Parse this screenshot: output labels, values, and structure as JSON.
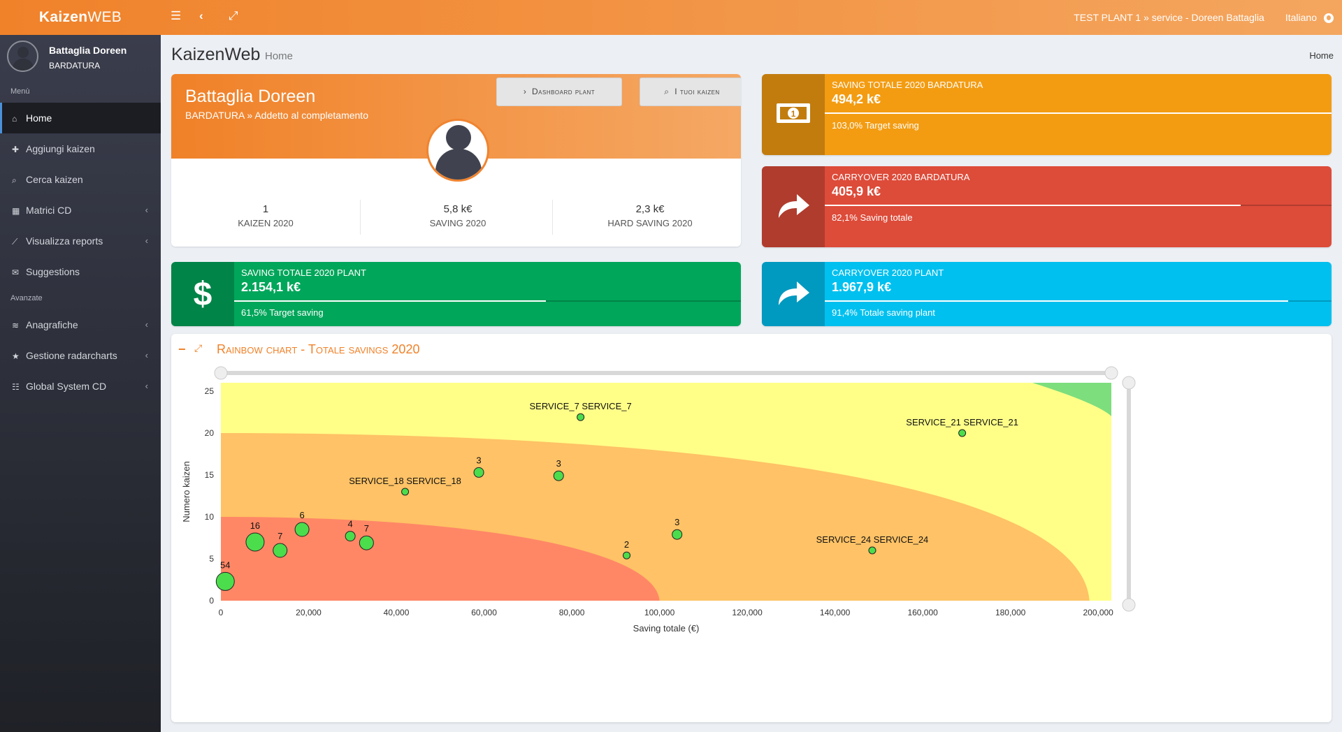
{
  "topbar": {
    "logo_bold": "Kaizen",
    "logo_light": "WEB",
    "breadcrumb": "TEST PLANT 1 » service - Doreen Battaglia",
    "language": "Italiano"
  },
  "user": {
    "name": "Battaglia Doreen",
    "department": "BARDATURA"
  },
  "sidebar": {
    "section_menu": "Menù",
    "section_advanced": "Avanzate",
    "items": [
      {
        "label": "Home",
        "icon": "home-icon"
      },
      {
        "label": "Aggiungi kaizen",
        "icon": "plus-icon"
      },
      {
        "label": "Cerca kaizen",
        "icon": "search-icon"
      },
      {
        "label": "Matrici CD",
        "icon": "table-icon"
      },
      {
        "label": "Visualizza reports",
        "icon": "line-chart-icon"
      },
      {
        "label": "Suggestions",
        "icon": "envelope-open-icon"
      }
    ],
    "advanced_items": [
      {
        "label": "Anagrafiche",
        "icon": "database-icon"
      },
      {
        "label": "Gestione radarcharts",
        "icon": "star-icon"
      },
      {
        "label": "Global System CD",
        "icon": "sliders-icon"
      }
    ]
  },
  "page": {
    "title": "KaizenWeb",
    "subtitle": "Home",
    "breadcrumb": "Home"
  },
  "profile": {
    "name": "Battaglia Doreen",
    "role": "BARDATURA » Addetto al completamento",
    "btn_dashboard": "Dashboard plant",
    "btn_kaizen": "I tuoi kaizen",
    "stats": [
      {
        "value": "1",
        "label": "KAIZEN 2020"
      },
      {
        "value": "5,8 k€",
        "label": "SAVING 2020"
      },
      {
        "value": "2,3 k€",
        "label": "HARD SAVING 2020"
      }
    ]
  },
  "info_boxes": {
    "saving_bardatura": {
      "title": "SAVING TOTALE 2020 BARDATURA",
      "value": "494,2 k€",
      "desc": "103,0% Target saving",
      "progress": 1.0,
      "color": "#f39c12",
      "icon": "money-icon"
    },
    "carryover_bardatura": {
      "title": "CARRYOVER 2020 BARDATURA",
      "value": "405,9 k€",
      "desc": "82,1% Saving totale",
      "progress": 0.821,
      "color": "#dd4b39",
      "icon": "share-arrow-icon"
    },
    "saving_plant": {
      "title": "SAVING TOTALE 2020 PLANT",
      "value": "2.154,1 k€",
      "desc": "61,5% Target saving",
      "progress": 0.615,
      "color": "#00a65a",
      "icon": "dollar-icon"
    },
    "carryover_plant": {
      "title": "CARRYOVER 2020 PLANT",
      "value": "1.967,9 k€",
      "desc": "91,4% Totale saving plant",
      "progress": 0.914,
      "color": "#00c0ef",
      "icon": "share-arrow-icon"
    }
  },
  "chart_panel": {
    "title": "Rainbow chart - Totale savings 2020"
  },
  "chart_data": {
    "type": "scatter",
    "title": "Rainbow chart - Totale savings 2020",
    "xlabel": "Saving totale (€)",
    "ylabel": "Numero kaizen",
    "xlim": [
      0,
      203000
    ],
    "ylim": [
      0,
      26
    ],
    "x_ticks": [
      "0",
      "20,000",
      "40,000",
      "60,000",
      "80,000",
      "100,000",
      "120,000",
      "140,000",
      "160,000",
      "180,000",
      "200,000"
    ],
    "x_tick_values": [
      0,
      20000,
      40000,
      60000,
      80000,
      100000,
      120000,
      140000,
      160000,
      180000,
      200000
    ],
    "y_ticks": [
      "0",
      "5",
      "10",
      "15",
      "20",
      "25"
    ],
    "y_tick_values": [
      0,
      5,
      10,
      15,
      20,
      25
    ],
    "zones_colors": {
      "red": "#ff8766",
      "orange": "#ffc266",
      "yellow": "#ffff88",
      "green": "#7dde7d"
    },
    "points": [
      {
        "x": 1000,
        "y": 2.3,
        "label": "54",
        "size": 54
      },
      {
        "x": 7800,
        "y": 7.0,
        "label": "16",
        "size": 16
      },
      {
        "x": 13500,
        "y": 6.0,
        "label": "7",
        "size": 7
      },
      {
        "x": 18500,
        "y": 8.5,
        "label": "6",
        "size": 6
      },
      {
        "x": 29500,
        "y": 7.7,
        "label": "4",
        "size": 4
      },
      {
        "x": 33200,
        "y": 6.9,
        "label": "7",
        "size": 7
      },
      {
        "x": 42000,
        "y": 13.0,
        "label": "SERVICE_18 SERVICE_18",
        "size": 1
      },
      {
        "x": 58800,
        "y": 15.3,
        "label": "3",
        "size": 3
      },
      {
        "x": 77000,
        "y": 14.9,
        "label": "3",
        "size": 3
      },
      {
        "x": 82000,
        "y": 21.9,
        "label": "SERVICE_7 SERVICE_7",
        "size": 1
      },
      {
        "x": 92500,
        "y": 5.4,
        "label": "2",
        "size": 2
      },
      {
        "x": 104000,
        "y": 7.9,
        "label": "3",
        "size": 3
      },
      {
        "x": 148500,
        "y": 6.0,
        "label": "SERVICE_24 SERVICE_24",
        "size": 1
      },
      {
        "x": 169000,
        "y": 20.0,
        "label": "SERVICE_21 SERVICE_21",
        "size": 1
      }
    ]
  }
}
